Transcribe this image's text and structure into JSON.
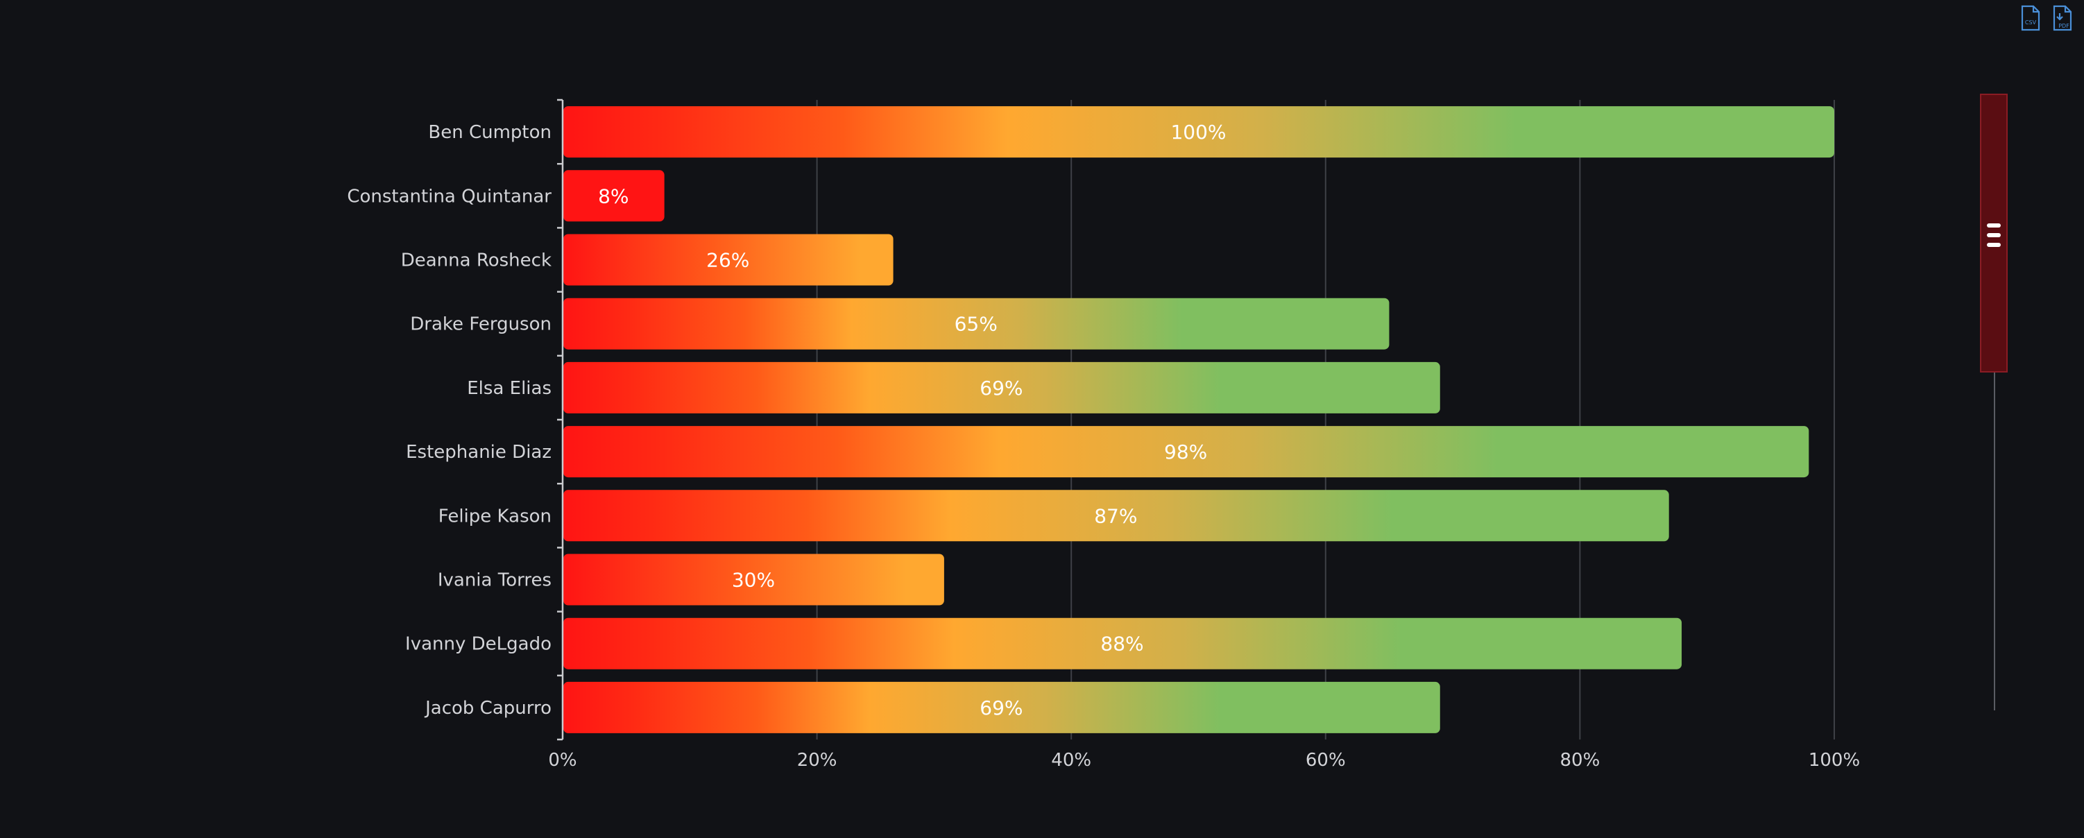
{
  "toolbar": {
    "csv_label": "CSV",
    "pdf_label": "PDF",
    "csv_icon": "csv-file-icon",
    "pdf_icon": "pdf-file-icon",
    "icon_color": "#4a8fd8"
  },
  "scrollbar": {
    "handle_icon": "drag-handle-icon",
    "thumb_color": "#5a0d12",
    "thumb_border": "#8a1c24",
    "track_color": "#5a5c63"
  },
  "colors": {
    "background": "#111216",
    "grid": "#3e4046",
    "axis": "#c9cace",
    "label": "#d3d4d8",
    "bar_label": "#ffffff",
    "gradient_red": "#ff1414",
    "gradient_orange": "#ffa830",
    "gradient_green": "#80bf60"
  },
  "chart_data": {
    "type": "bar",
    "orientation": "horizontal",
    "categories": [
      "Ben Cumpton",
      "Constantina Quintanar",
      "Deanna Rosheck",
      "Drake Ferguson",
      "Elsa Elias",
      "Estephanie Diaz",
      "Felipe Kason",
      "Ivania Torres",
      "Ivanny DeLgado",
      "Jacob Capurro"
    ],
    "values": [
      100,
      8,
      26,
      65,
      69,
      98,
      87,
      30,
      88,
      69
    ],
    "data_labels": [
      "100%",
      "8%",
      "26%",
      "65%",
      "69%",
      "98%",
      "87%",
      "30%",
      "88%",
      "69%"
    ],
    "x_ticks": [
      "0%",
      "20%",
      "40%",
      "60%",
      "80%",
      "100%"
    ],
    "xlim": [
      0,
      100
    ],
    "title": "",
    "xlabel": "",
    "ylabel": "",
    "grid": "vertical",
    "legend": "none"
  }
}
